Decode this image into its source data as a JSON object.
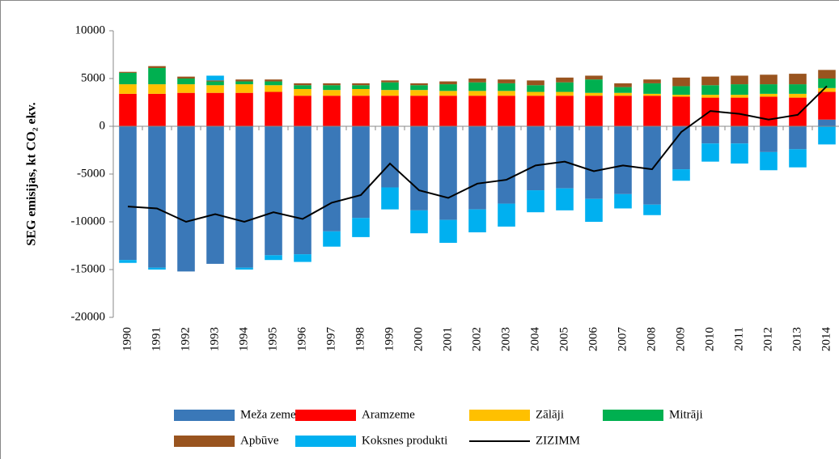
{
  "chart_data": {
    "type": "bar",
    "stacked": true,
    "y_label": "SEG emisijas, kt CO₂ ekv.",
    "categories": [
      "1990",
      "1991",
      "1992",
      "1993",
      "1994",
      "1995",
      "1996",
      "1997",
      "1998",
      "1999",
      "2000",
      "2001",
      "2002",
      "2003",
      "2004",
      "2005",
      "2006",
      "2007",
      "2008",
      "2009",
      "2010",
      "2011",
      "2012",
      "2013",
      "2014"
    ],
    "ylim": [
      -20000,
      10000
    ],
    "yticks": [
      -20000,
      -15000,
      -10000,
      -5000,
      0,
      5000,
      10000
    ],
    "series": [
      {
        "name": "Meža zeme",
        "color": "#3a78b8",
        "values": [
          -14000,
          -14800,
          -15200,
          -14400,
          -14800,
          -13500,
          -13400,
          -11000,
          -9600,
          -6400,
          -8800,
          -9800,
          -8700,
          -8100,
          -6700,
          -6500,
          -7600,
          -7100,
          -8200,
          -4500,
          -1800,
          -1800,
          -2700,
          -2400,
          700
        ]
      },
      {
        "name": "Aramzeme",
        "color": "#ff0000",
        "values": [
          3400,
          3400,
          3500,
          3500,
          3500,
          3600,
          3200,
          3200,
          3200,
          3200,
          3200,
          3200,
          3200,
          3200,
          3200,
          3200,
          3200,
          3200,
          3200,
          3100,
          3000,
          3000,
          3100,
          3000,
          2900
        ]
      },
      {
        "name": "Zālāji",
        "color": "#ffc000",
        "values": [
          1000,
          1000,
          900,
          800,
          900,
          700,
          700,
          600,
          700,
          600,
          600,
          500,
          500,
          500,
          400,
          400,
          300,
          300,
          200,
          200,
          300,
          300,
          300,
          400,
          400
        ]
      },
      {
        "name": "Mitrāji",
        "color": "#00b050",
        "values": [
          1200,
          1700,
          600,
          400,
          300,
          400,
          400,
          500,
          400,
          800,
          500,
          700,
          900,
          800,
          700,
          1000,
          1400,
          600,
          1100,
          900,
          1000,
          1100,
          1000,
          1000,
          1000
        ]
      },
      {
        "name": "Apbūve",
        "color": "#99541f",
        "values": [
          100,
          200,
          200,
          100,
          200,
          200,
          200,
          200,
          200,
          200,
          200,
          300,
          400,
          400,
          500,
          500,
          400,
          400,
          400,
          900,
          900,
          900,
          1000,
          1100,
          900
        ]
      },
      {
        "name": "Koksnes produkti",
        "color": "#00b0f0",
        "values": [
          -300,
          -200,
          0,
          500,
          -200,
          -500,
          -800,
          -1600,
          -2000,
          -2300,
          -2400,
          -2400,
          -2400,
          -2400,
          -2300,
          -2300,
          -2400,
          -1500,
          -1100,
          -1200,
          -1900,
          -2100,
          -1900,
          -1900,
          -1900
        ]
      },
      {
        "name": "ZIZIMM",
        "color": "#000000",
        "type": "line",
        "values": [
          -8400,
          -8600,
          -10000,
          -9200,
          -10000,
          -9000,
          -9700,
          -8000,
          -7200,
          -3900,
          -6700,
          -7500,
          -6000,
          -5600,
          -4100,
          -3700,
          -4700,
          -4100,
          -4500,
          -600,
          1600,
          1300,
          700,
          1200,
          4200
        ]
      }
    ]
  }
}
